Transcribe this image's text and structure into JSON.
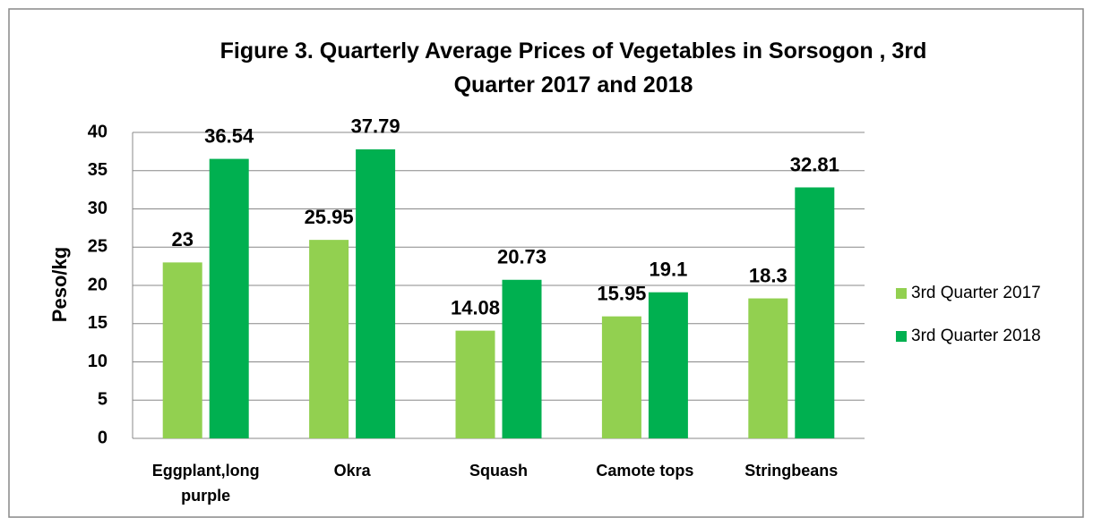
{
  "chart_data": {
    "type": "bar",
    "title": "Figure 3. Quarterly Average Prices of Vegetables in Sorsogon , 3rd Quarter 2017 and 2018",
    "y_label": "Peso/kg",
    "categories": [
      "Eggplant,long purple",
      "Okra",
      "Squash",
      "Camote tops",
      "Stringbeans"
    ],
    "series": [
      {
        "name": "3rd Quarter 2017",
        "color": "#92d050",
        "values": [
          23,
          25.95,
          14.08,
          15.95,
          18.3
        ]
      },
      {
        "name": "3rd Quarter 2018",
        "color": "#00b050",
        "values": [
          36.54,
          37.79,
          20.73,
          19.1,
          32.81
        ]
      }
    ],
    "ylim": [
      0,
      40
    ],
    "yticks": [
      0,
      5,
      10,
      15,
      20,
      25,
      30,
      35,
      40
    ],
    "grid": true,
    "legend": "right"
  }
}
